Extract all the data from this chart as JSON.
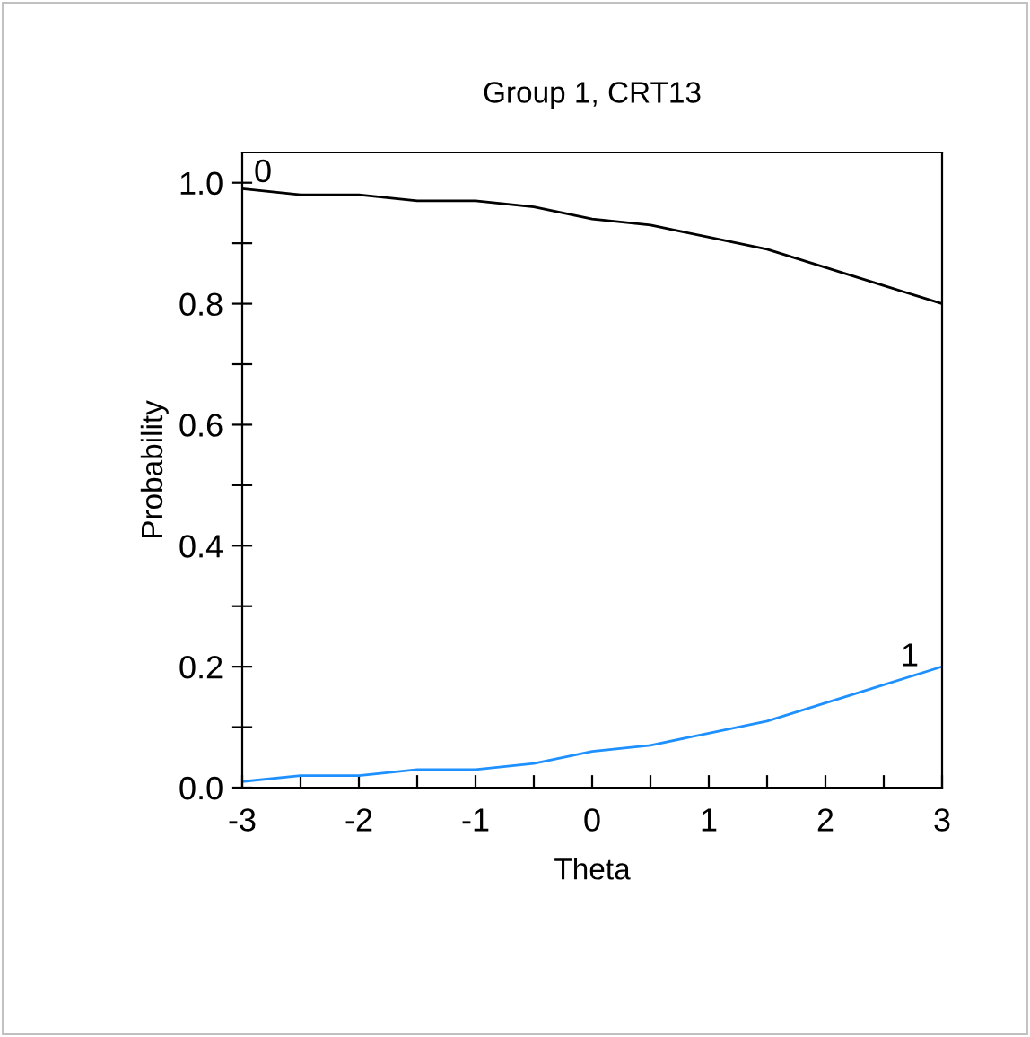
{
  "chart_data": {
    "type": "line",
    "title": "Group 1, CRT13",
    "xlabel": "Theta",
    "ylabel": "Probability",
    "x": [
      -3,
      -2.5,
      -2,
      -1.5,
      -1,
      -0.5,
      0,
      0.5,
      1,
      1.5,
      2,
      2.5,
      3
    ],
    "series": [
      {
        "color": "#000000",
        "values": [
          0.99,
          0.98,
          0.98,
          0.97,
          0.97,
          0.96,
          0.94,
          0.93,
          0.91,
          0.89,
          0.86,
          0.83,
          0.8
        ]
      },
      {
        "color": "#1e90ff",
        "values": [
          0.01,
          0.02,
          0.02,
          0.03,
          0.03,
          0.04,
          0.06,
          0.07,
          0.09,
          0.11,
          0.14,
          0.17,
          0.2
        ]
      }
    ],
    "annotations": [
      {
        "text": "0",
        "x": -2.9,
        "y": 0.99
      },
      {
        "text": "1",
        "x": 2.8,
        "y": 0.19
      }
    ],
    "xlim": [
      -3,
      3
    ],
    "ylim": [
      0,
      1.05
    ],
    "xticks": [
      -3,
      {
        "value": -2.5,
        "label": null
      },
      -2,
      {
        "value": -1.5,
        "label": null
      },
      -1,
      {
        "value": -0.5,
        "label": null
      },
      0,
      {
        "value": 0.5,
        "label": null
      },
      1,
      {
        "value": 1.5,
        "label": null
      },
      2,
      {
        "value": 2.5,
        "label": null
      },
      3
    ],
    "yticks": [
      {
        "value": 0,
        "label": "0.0"
      },
      {
        "value": 0.1,
        "label": null
      },
      {
        "value": 0.2,
        "label": "0.2"
      },
      {
        "value": 0.3,
        "label": null
      },
      {
        "value": 0.4,
        "label": "0.4"
      },
      {
        "value": 0.5,
        "label": null
      },
      {
        "value": 0.6,
        "label": "0.6"
      },
      {
        "value": 0.7,
        "label": null
      },
      {
        "value": 0.8,
        "label": "0.8"
      },
      {
        "value": 0.9,
        "label": null
      },
      {
        "value": 1,
        "label": "1.0"
      }
    ],
    "grid": false,
    "legend": false,
    "marker": "none",
    "line_style": "solid"
  }
}
